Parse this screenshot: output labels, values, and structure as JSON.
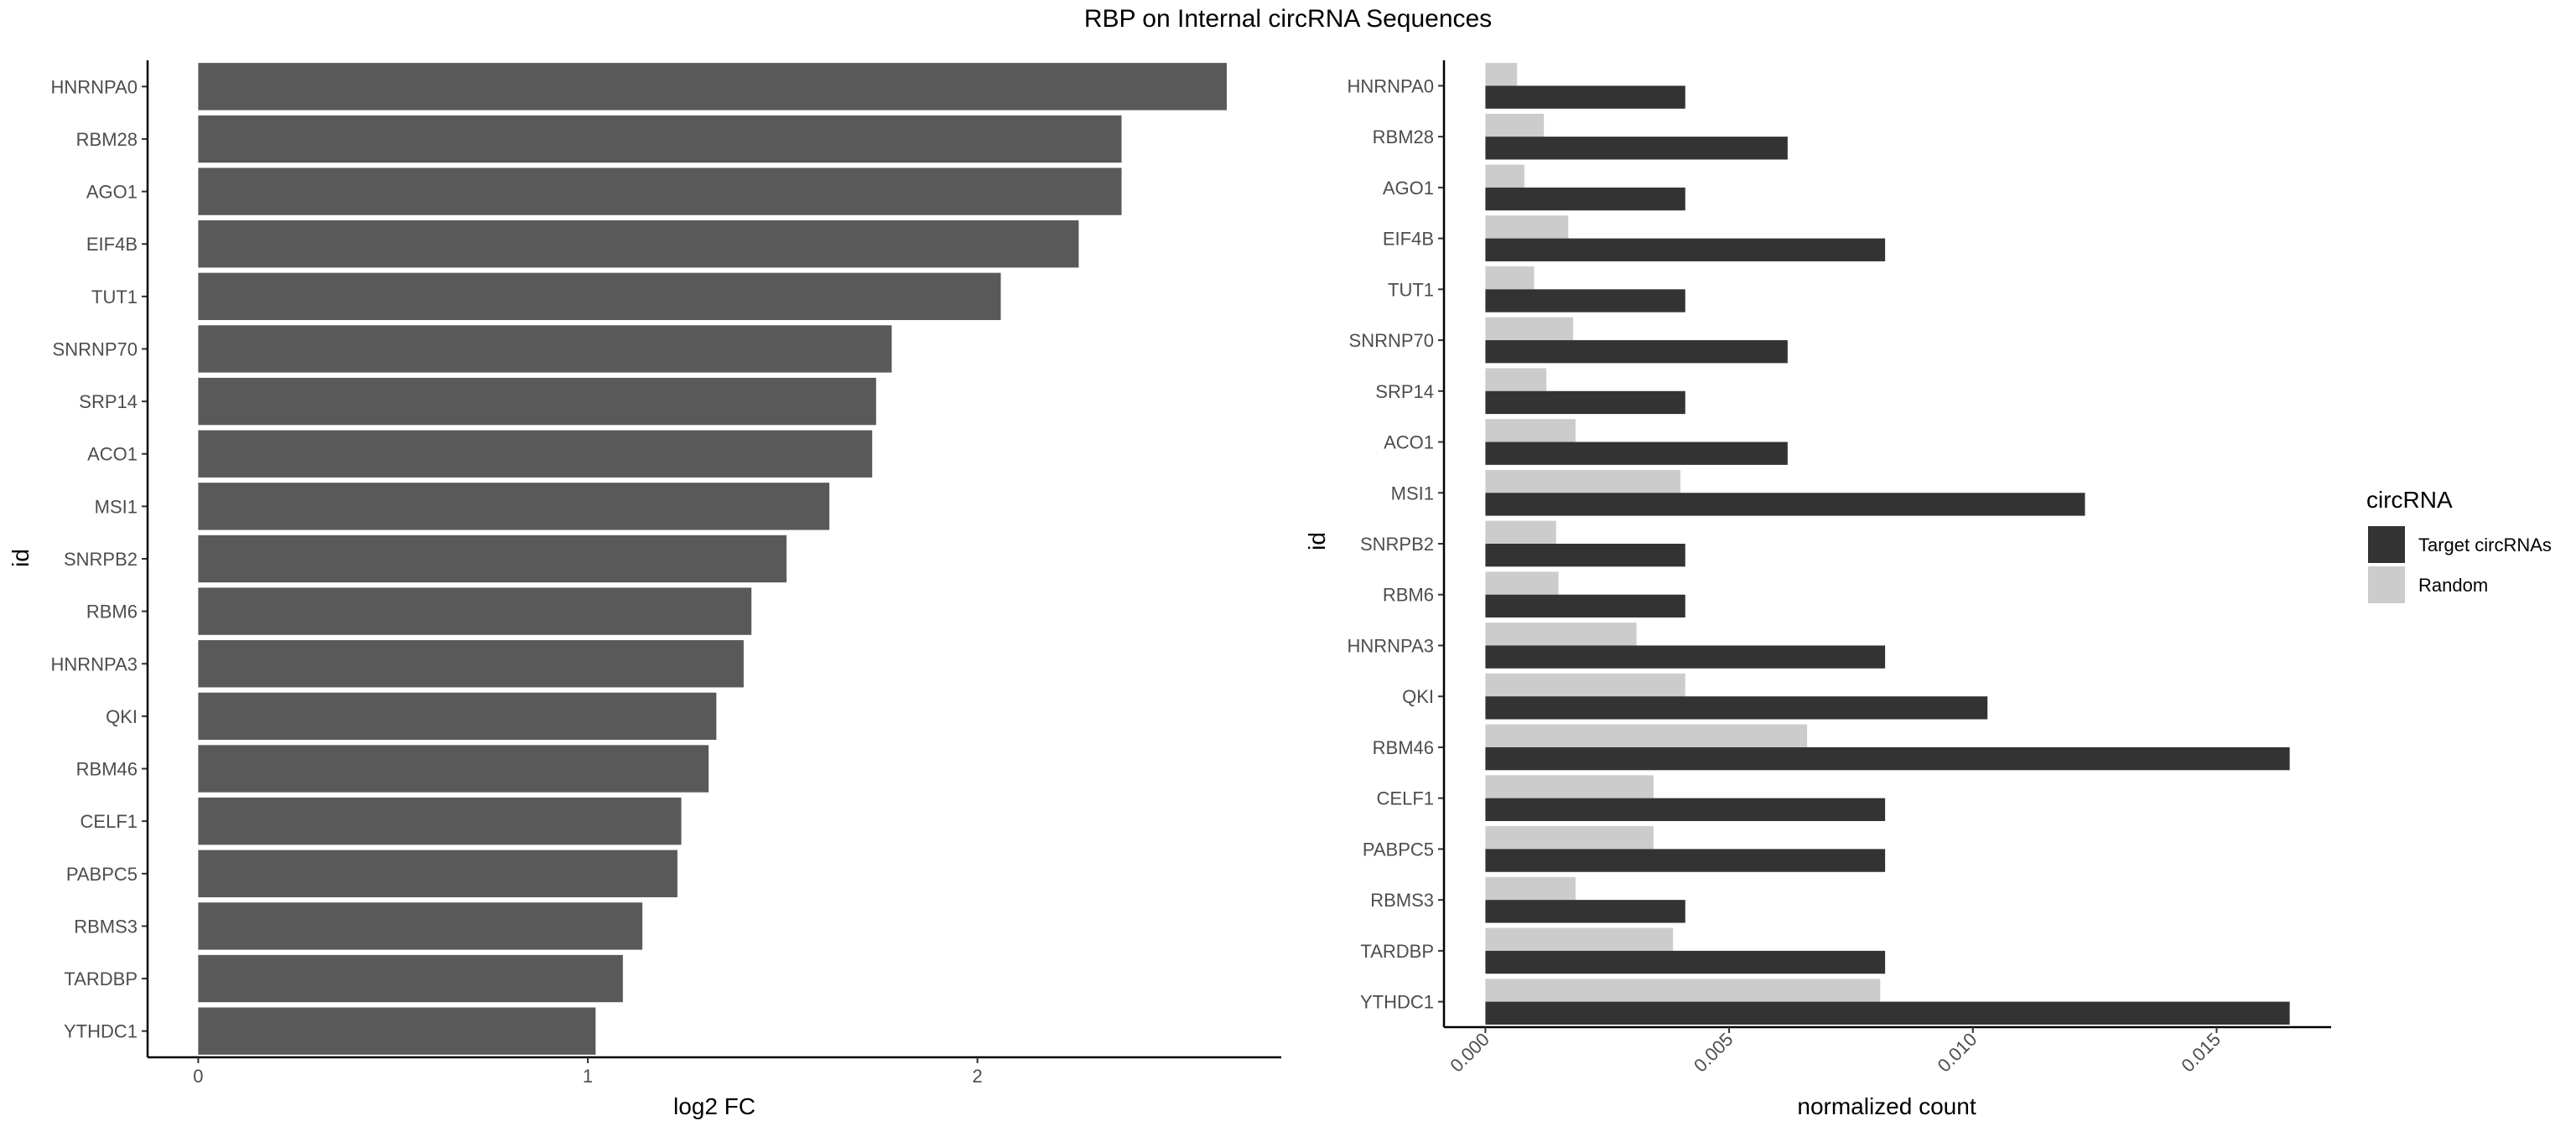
{
  "title": "RBP on Internal circRNA Sequences",
  "chart_data": [
    {
      "type": "bar",
      "orientation": "horizontal",
      "categories": [
        "HNRNPA0",
        "RBM28",
        "AGO1",
        "EIF4B",
        "TUT1",
        "SNRNP70",
        "SRP14",
        "ACO1",
        "MSI1",
        "SNRPB2",
        "RBM6",
        "HNRNPA3",
        "QKI",
        "RBM46",
        "CELF1",
        "PABPC5",
        "RBMS3",
        "TARDBP",
        "YTHDC1"
      ],
      "values": [
        2.64,
        2.37,
        2.37,
        2.26,
        2.06,
        1.78,
        1.74,
        1.73,
        1.62,
        1.51,
        1.42,
        1.4,
        1.33,
        1.31,
        1.24,
        1.23,
        1.14,
        1.09,
        1.02
      ],
      "xlabel": "log2 FC",
      "ylabel": "id",
      "xticks": [
        "0",
        "1",
        "2"
      ],
      "xlim": [
        -0.13,
        2.78
      ],
      "grid": false,
      "colors": {
        "bar": "#595959"
      }
    },
    {
      "type": "bar",
      "orientation": "horizontal",
      "grouped": true,
      "categories": [
        "HNRNPA0",
        "RBM28",
        "AGO1",
        "EIF4B",
        "TUT1",
        "SNRNP70",
        "SRP14",
        "ACO1",
        "MSI1",
        "SNRPB2",
        "RBM6",
        "HNRNPA3",
        "QKI",
        "RBM46",
        "CELF1",
        "PABPC5",
        "RBMS3",
        "TARDBP",
        "YTHDC1"
      ],
      "series": [
        {
          "name": "Target circRNAs",
          "color": "#333333",
          "values": [
            0.0041,
            0.0062,
            0.0041,
            0.0082,
            0.0041,
            0.0062,
            0.0041,
            0.0062,
            0.0123,
            0.0041,
            0.0041,
            0.0082,
            0.0103,
            0.0165,
            0.0082,
            0.0082,
            0.0041,
            0.0082,
            0.0165
          ]
        },
        {
          "name": "Random",
          "color": "#cccccc",
          "values": [
            0.00065,
            0.0012,
            0.0008,
            0.0017,
            0.001,
            0.0018,
            0.00125,
            0.00185,
            0.004,
            0.00145,
            0.0015,
            0.0031,
            0.0041,
            0.0066,
            0.00345,
            0.00345,
            0.00185,
            0.00385,
            0.0081
          ]
        }
      ],
      "xlabel": "normalized count",
      "ylabel": "id",
      "xticks": [
        "0.000",
        "0.005",
        "0.010",
        "0.015"
      ],
      "xlim": [
        -0.00085,
        0.01735
      ],
      "legend": {
        "title": "circRNA",
        "placement": "right"
      },
      "grid": false
    }
  ]
}
